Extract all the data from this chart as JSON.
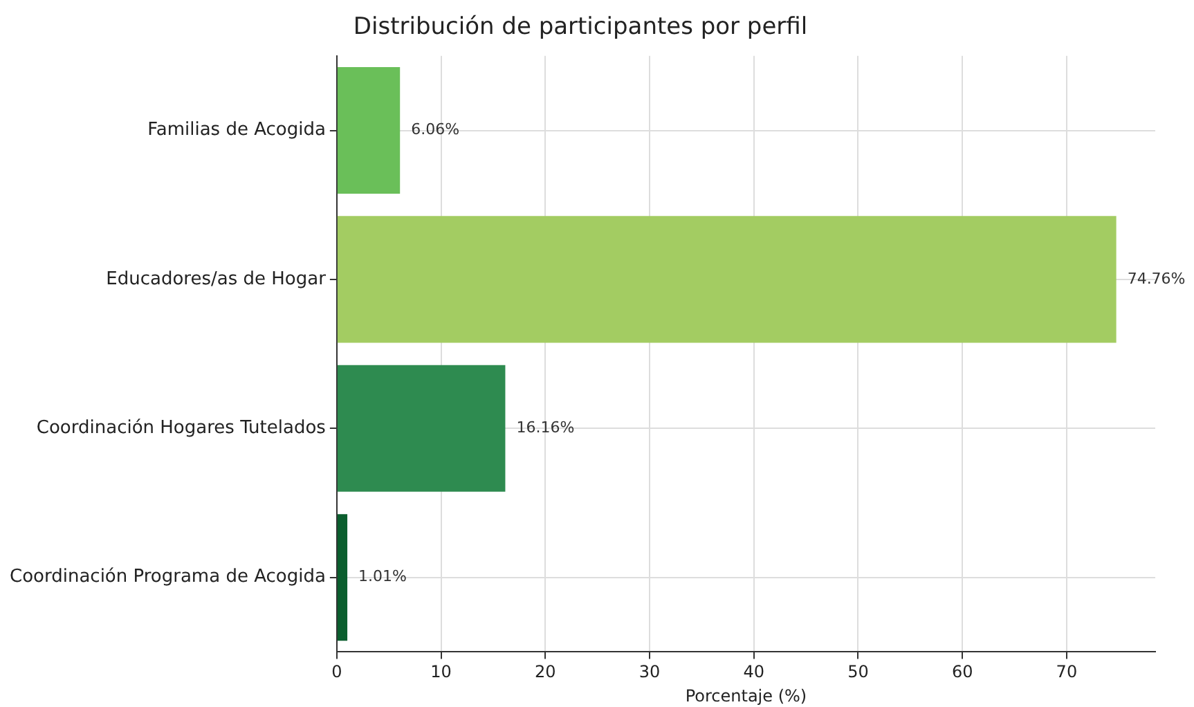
{
  "chart_data": {
    "type": "bar",
    "orientation": "horizontal",
    "title": "Distribución de participantes por perfil",
    "xlabel": "Porcentaje (%)",
    "categories": [
      "Familias de Acogida",
      "Educadores/as de Hogar",
      "Coordinación Hogares Tutelados",
      "Coordinación Programa de Acogida"
    ],
    "values": [
      6.06,
      74.76,
      16.16,
      1.01
    ],
    "colors": [
      "#6abf59",
      "#a3cc62",
      "#2e8b50",
      "#0b5e2e"
    ],
    "value_labels": [
      "6.06%",
      "74.76%",
      "16.16%",
      "1.01%"
    ],
    "xlim": [
      0,
      78.5
    ],
    "xticks": [
      0,
      10,
      20,
      30,
      40,
      50,
      60,
      70
    ],
    "grid": true,
    "legend": false
  }
}
